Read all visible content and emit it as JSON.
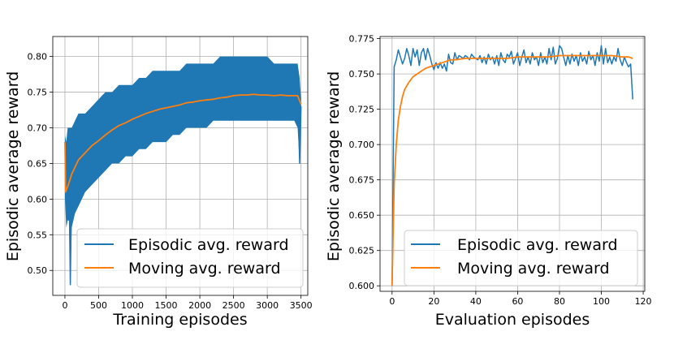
{
  "colors": {
    "episodic": "#1f77b4",
    "moving": "#ff7f0e",
    "grid": "#b0b0b0"
  },
  "chart_data": [
    {
      "type": "line",
      "xlabel": "Training episodes",
      "ylabel": "Episodic average reward",
      "xlim": [
        -180,
        3600
      ],
      "ylim": [
        0.465,
        0.828
      ],
      "xticks": [
        0,
        500,
        1000,
        1500,
        2000,
        2500,
        3000,
        3500
      ],
      "xtick_labels": [
        "0",
        "500",
        "1000",
        "1500",
        "2000",
        "2500",
        "3000",
        "3500"
      ],
      "yticks": [
        0.5,
        0.55,
        0.6,
        0.65,
        0.7,
        0.75,
        0.8
      ],
      "ytick_labels": [
        "0.50",
        "0.55",
        "0.60",
        "0.65",
        "0.70",
        "0.75",
        "0.80"
      ],
      "grid": true,
      "legend": "lower-right",
      "series": [
        {
          "name": "Episodic avg. reward",
          "x": [
            0,
            20,
            40,
            60,
            80,
            100,
            150,
            200,
            300,
            400,
            500,
            600,
            700,
            800,
            900,
            1000,
            1100,
            1200,
            1300,
            1400,
            1500,
            1600,
            1700,
            1800,
            1900,
            2000,
            2100,
            2200,
            2300,
            2400,
            2500,
            2600,
            2700,
            2800,
            2900,
            3000,
            3100,
            3200,
            3300,
            3400,
            3450,
            3480,
            3500
          ],
          "values": [
            0.68,
            0.59,
            0.62,
            0.64,
            0.48,
            0.63,
            0.64,
            0.66,
            0.67,
            0.68,
            0.69,
            0.69,
            0.7,
            0.7,
            0.71,
            0.71,
            0.72,
            0.72,
            0.73,
            0.72,
            0.73,
            0.73,
            0.73,
            0.74,
            0.74,
            0.74,
            0.74,
            0.74,
            0.75,
            0.75,
            0.75,
            0.75,
            0.74,
            0.75,
            0.75,
            0.75,
            0.74,
            0.75,
            0.75,
            0.74,
            0.76,
            0.65,
            0.73
          ],
          "band_lower": [
            0.6,
            0.56,
            0.57,
            0.57,
            0.48,
            0.56,
            0.58,
            0.59,
            0.61,
            0.62,
            0.63,
            0.64,
            0.65,
            0.65,
            0.66,
            0.66,
            0.67,
            0.67,
            0.68,
            0.68,
            0.68,
            0.69,
            0.69,
            0.7,
            0.7,
            0.7,
            0.7,
            0.71,
            0.71,
            0.71,
            0.71,
            0.71,
            0.71,
            0.71,
            0.71,
            0.71,
            0.71,
            0.71,
            0.71,
            0.71,
            0.7,
            0.65,
            0.71
          ],
          "band_upper": [
            0.69,
            0.68,
            0.7,
            0.7,
            0.7,
            0.7,
            0.71,
            0.72,
            0.72,
            0.73,
            0.74,
            0.75,
            0.75,
            0.76,
            0.76,
            0.76,
            0.77,
            0.77,
            0.78,
            0.78,
            0.78,
            0.78,
            0.78,
            0.79,
            0.79,
            0.79,
            0.79,
            0.79,
            0.8,
            0.8,
            0.8,
            0.8,
            0.8,
            0.8,
            0.8,
            0.8,
            0.79,
            0.79,
            0.79,
            0.79,
            0.79,
            0.77,
            0.74
          ]
        },
        {
          "name": "Moving avg. reward",
          "x": [
            0,
            10,
            50,
            100,
            200,
            300,
            400,
            500,
            600,
            700,
            800,
            900,
            1000,
            1100,
            1200,
            1300,
            1400,
            1500,
            1600,
            1700,
            1800,
            1900,
            2000,
            2100,
            2200,
            2300,
            2400,
            2500,
            2600,
            2700,
            2800,
            2900,
            3000,
            3100,
            3200,
            3300,
            3400,
            3450,
            3500
          ],
          "values": [
            0.68,
            0.61,
            0.62,
            0.635,
            0.655,
            0.665,
            0.675,
            0.682,
            0.69,
            0.697,
            0.703,
            0.707,
            0.712,
            0.716,
            0.72,
            0.723,
            0.726,
            0.728,
            0.73,
            0.732,
            0.735,
            0.736,
            0.738,
            0.739,
            0.74,
            0.742,
            0.743,
            0.745,
            0.746,
            0.746,
            0.747,
            0.746,
            0.746,
            0.745,
            0.746,
            0.745,
            0.745,
            0.745,
            0.733
          ]
        }
      ]
    },
    {
      "type": "line",
      "xlabel": "Evaluation episodes",
      "ylabel": "Episodic average reward",
      "xlim": [
        -5.75,
        120.75
      ],
      "ylim": [
        0.5961,
        0.7765
      ],
      "xticks": [
        0,
        20,
        40,
        60,
        80,
        100,
        120
      ],
      "xtick_labels": [
        "0",
        "20",
        "40",
        "60",
        "80",
        "100",
        "120"
      ],
      "yticks": [
        0.6,
        0.625,
        0.65,
        0.675,
        0.7,
        0.725,
        0.75,
        0.775
      ],
      "ytick_labels": [
        "0.600",
        "0.625",
        "0.650",
        "0.675",
        "0.700",
        "0.725",
        "0.750",
        "0.775"
      ],
      "grid": true,
      "legend": "lower-right",
      "series": [
        {
          "name": "Episodic avg. reward",
          "x": [
            0,
            1,
            2,
            3,
            4,
            5,
            6,
            7,
            8,
            9,
            10,
            11,
            12,
            13,
            14,
            15,
            16,
            17,
            18,
            19,
            20,
            21,
            22,
            23,
            24,
            25,
            26,
            27,
            28,
            29,
            30,
            31,
            32,
            33,
            34,
            35,
            36,
            37,
            38,
            39,
            40,
            41,
            42,
            43,
            44,
            45,
            46,
            47,
            48,
            49,
            50,
            51,
            52,
            53,
            54,
            55,
            56,
            57,
            58,
            59,
            60,
            61,
            62,
            63,
            64,
            65,
            66,
            67,
            68,
            69,
            70,
            71,
            72,
            73,
            74,
            75,
            76,
            77,
            78,
            79,
            80,
            81,
            82,
            83,
            84,
            85,
            86,
            87,
            88,
            89,
            90,
            91,
            92,
            93,
            94,
            95,
            96,
            97,
            98,
            99,
            100,
            101,
            102,
            103,
            104,
            105,
            106,
            107,
            108,
            109,
            110,
            111,
            112,
            113,
            114,
            115
          ],
          "values": [
            0.6,
            0.755,
            0.76,
            0.767,
            0.762,
            0.757,
            0.761,
            0.768,
            0.763,
            0.756,
            0.768,
            0.762,
            0.767,
            0.756,
            0.765,
            0.768,
            0.76,
            0.768,
            0.763,
            0.757,
            0.753,
            0.758,
            0.754,
            0.758,
            0.754,
            0.757,
            0.752,
            0.764,
            0.758,
            0.757,
            0.765,
            0.76,
            0.763,
            0.762,
            0.761,
            0.763,
            0.762,
            0.76,
            0.764,
            0.762,
            0.761,
            0.76,
            0.763,
            0.758,
            0.762,
            0.757,
            0.764,
            0.76,
            0.762,
            0.757,
            0.763,
            0.756,
            0.765,
            0.76,
            0.758,
            0.764,
            0.762,
            0.766,
            0.757,
            0.761,
            0.765,
            0.756,
            0.762,
            0.767,
            0.758,
            0.762,
            0.757,
            0.765,
            0.76,
            0.762,
            0.756,
            0.765,
            0.758,
            0.762,
            0.757,
            0.768,
            0.76,
            0.769,
            0.757,
            0.761,
            0.77,
            0.768,
            0.762,
            0.756,
            0.763,
            0.757,
            0.764,
            0.759,
            0.763,
            0.756,
            0.765,
            0.759,
            0.762,
            0.757,
            0.766,
            0.76,
            0.763,
            0.756,
            0.765,
            0.759,
            0.77,
            0.757,
            0.768,
            0.758,
            0.762,
            0.757,
            0.762,
            0.759,
            0.768,
            0.76,
            0.756,
            0.762,
            0.758,
            0.755,
            0.757,
            0.732
          ]
        },
        {
          "name": "Moving avg. reward",
          "x": [
            0,
            1,
            2,
            3,
            4,
            5,
            6,
            8,
            10,
            12,
            14,
            16,
            18,
            20,
            22,
            24,
            26,
            28,
            30,
            35,
            40,
            45,
            50,
            55,
            60,
            65,
            70,
            75,
            80,
            85,
            90,
            95,
            100,
            105,
            110,
            113,
            115
          ],
          "values": [
            0.6,
            0.672,
            0.7,
            0.717,
            0.727,
            0.734,
            0.739,
            0.744,
            0.748,
            0.75,
            0.752,
            0.754,
            0.755,
            0.756,
            0.757,
            0.758,
            0.759,
            0.76,
            0.76,
            0.761,
            0.761,
            0.761,
            0.761,
            0.761,
            0.762,
            0.762,
            0.762,
            0.762,
            0.763,
            0.763,
            0.763,
            0.763,
            0.763,
            0.763,
            0.762,
            0.762,
            0.761
          ]
        }
      ]
    }
  ]
}
